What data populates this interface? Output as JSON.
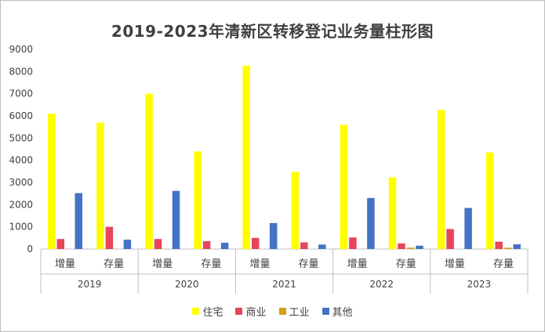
{
  "chart_data": {
    "type": "bar",
    "title": "2019-2023年清新区转移登记业务量柱形图",
    "ylim": [
      0,
      9000
    ],
    "yticks": [
      0,
      1000,
      2000,
      3000,
      4000,
      5000,
      6000,
      7000,
      8000,
      9000
    ],
    "groups": [
      "2019",
      "2020",
      "2021",
      "2022",
      "2023"
    ],
    "subcategories": [
      "增量",
      "存量"
    ],
    "categories": [
      "2019 增量",
      "2019 存量",
      "2020 增量",
      "2020 存量",
      "2021 增量",
      "2021 存量",
      "2022 增量",
      "2022 存量",
      "2023 增量",
      "2023 存量"
    ],
    "series": [
      {
        "name": "住宅",
        "color": "#ffff00",
        "values": [
          6100,
          5700,
          7000,
          4400,
          8270,
          3480,
          5600,
          3230,
          6270,
          4350
        ]
      },
      {
        "name": "商业",
        "color": "#e8445a",
        "values": [
          450,
          1000,
          450,
          350,
          500,
          300,
          520,
          250,
          900,
          330
        ]
      },
      {
        "name": "工业",
        "color": "#d4a017",
        "values": [
          0,
          0,
          0,
          0,
          0,
          0,
          0,
          60,
          0,
          60
        ]
      },
      {
        "name": "其他",
        "color": "#4472c4",
        "values": [
          2520,
          420,
          2620,
          280,
          1170,
          200,
          2300,
          150,
          1850,
          210
        ]
      }
    ],
    "grid": false,
    "legend_position": "bottom"
  }
}
